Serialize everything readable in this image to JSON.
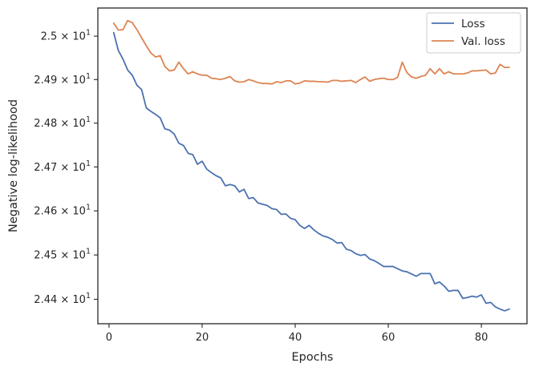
{
  "chart_data": {
    "type": "line",
    "title": "",
    "xlabel": "Epochs",
    "ylabel": "Negative log-likelihood",
    "xlim": [
      -2.4,
      89.8
    ],
    "ylim": [
      24.345,
      25.065
    ],
    "yscale": "log",
    "grid": false,
    "legend_position": "top-right",
    "x_ticks": [
      0,
      20,
      40,
      60,
      80
    ],
    "x_tick_labels": [
      "0",
      "20",
      "40",
      "60",
      "80"
    ],
    "y_ticks": [
      24.4,
      24.5,
      24.6,
      24.7,
      24.8,
      24.9,
      25.0
    ],
    "y_tick_labels": [
      {
        "mantissa": "2.44",
        "times": "×",
        "base": "10",
        "exp": "1"
      },
      {
        "mantissa": "2.45",
        "times": "×",
        "base": "10",
        "exp": "1"
      },
      {
        "mantissa": "2.46",
        "times": "×",
        "base": "10",
        "exp": "1"
      },
      {
        "mantissa": "2.47",
        "times": "×",
        "base": "10",
        "exp": "1"
      },
      {
        "mantissa": "2.48",
        "times": "×",
        "base": "10",
        "exp": "1"
      },
      {
        "mantissa": "2.49",
        "times": "×",
        "base": "10",
        "exp": "1"
      },
      {
        "mantissa": "2.5",
        "times": "×",
        "base": "10",
        "exp": "1"
      }
    ],
    "x": [
      1,
      2,
      3,
      4,
      5,
      6,
      7,
      8,
      9,
      10,
      11,
      12,
      13,
      14,
      15,
      16,
      17,
      18,
      19,
      20,
      21,
      22,
      23,
      24,
      25,
      26,
      27,
      28,
      29,
      30,
      31,
      32,
      33,
      34,
      35,
      36,
      37,
      38,
      39,
      40,
      41,
      42,
      43,
      44,
      45,
      46,
      47,
      48,
      49,
      50,
      51,
      52,
      53,
      54,
      55,
      56,
      57,
      58,
      59,
      60,
      61,
      62,
      63,
      64,
      65,
      66,
      67,
      68,
      69,
      70,
      71,
      72,
      73,
      74,
      75,
      76,
      77,
      78,
      79,
      80,
      81,
      82,
      83,
      84,
      85,
      86
    ],
    "series": [
      {
        "name": "Loss",
        "color": "#4c72b0",
        "values": [
          25.008,
          24.967,
          24.947,
          24.922,
          24.91,
          24.887,
          24.877,
          24.835,
          24.827,
          24.82,
          24.812,
          24.787,
          24.784,
          24.775,
          24.754,
          24.749,
          24.731,
          24.728,
          24.706,
          24.713,
          24.695,
          24.687,
          24.68,
          24.675,
          24.657,
          24.66,
          24.657,
          24.643,
          24.649,
          24.628,
          24.63,
          24.618,
          24.615,
          24.612,
          24.605,
          24.603,
          24.592,
          24.593,
          24.583,
          24.58,
          24.567,
          24.56,
          24.567,
          24.557,
          24.549,
          24.543,
          24.54,
          24.535,
          24.527,
          24.528,
          24.513,
          24.51,
          24.503,
          24.499,
          24.501,
          24.491,
          24.487,
          24.481,
          24.474,
          24.474,
          24.474,
          24.469,
          24.464,
          24.462,
          24.457,
          24.452,
          24.458,
          24.458,
          24.458,
          24.435,
          24.439,
          24.43,
          24.418,
          24.42,
          24.42,
          24.402,
          24.404,
          24.407,
          24.405,
          24.41,
          24.391,
          24.393,
          24.383,
          24.378,
          24.374,
          24.378
        ]
      },
      {
        "name": "Val. loss",
        "color": "#dd8452",
        "values": [
          25.03,
          25.014,
          25.015,
          25.036,
          25.031,
          25.015,
          24.996,
          24.978,
          24.961,
          24.952,
          24.955,
          24.93,
          24.92,
          24.922,
          24.94,
          24.925,
          24.913,
          24.918,
          24.913,
          24.91,
          24.91,
          24.903,
          24.902,
          24.9,
          24.903,
          24.907,
          24.897,
          24.894,
          24.895,
          24.9,
          24.897,
          24.893,
          24.891,
          24.891,
          24.89,
          24.895,
          24.893,
          24.897,
          24.897,
          24.89,
          24.892,
          24.897,
          24.896,
          24.896,
          24.895,
          24.895,
          24.894,
          24.898,
          24.898,
          24.896,
          24.897,
          24.898,
          24.893,
          24.9,
          24.906,
          24.896,
          24.9,
          24.902,
          24.903,
          24.9,
          24.9,
          24.905,
          24.94,
          24.916,
          24.906,
          24.903,
          24.907,
          24.91,
          24.925,
          24.913,
          24.925,
          24.913,
          24.918,
          24.913,
          24.913,
          24.913,
          24.915,
          24.92,
          24.92,
          24.921,
          24.922,
          24.913,
          24.915,
          24.935,
          24.928,
          24.928
        ]
      }
    ]
  }
}
